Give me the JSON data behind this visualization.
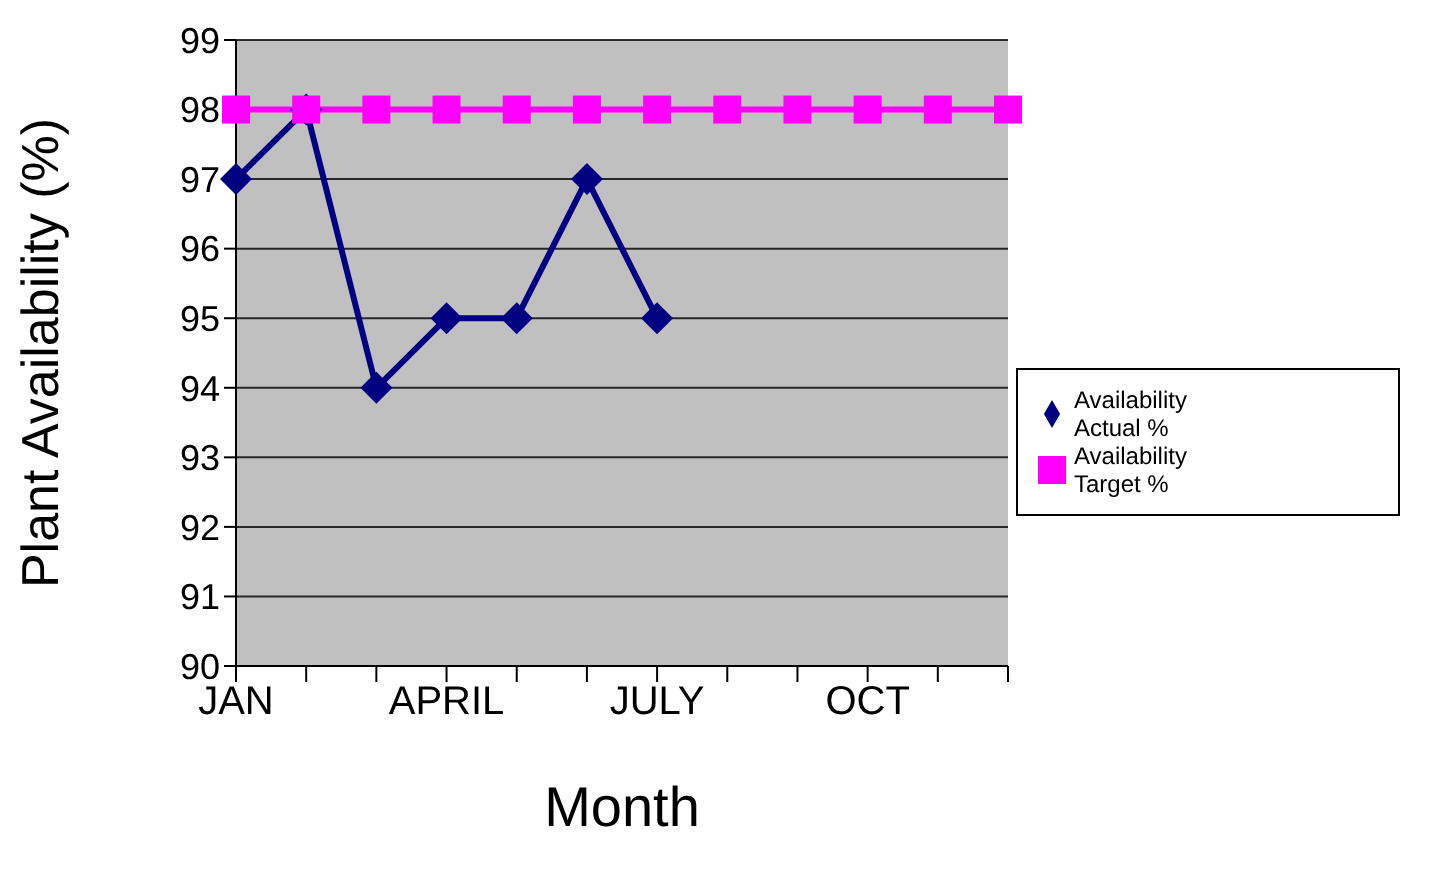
{
  "chart_data": {
    "type": "line",
    "xlabel": "Month",
    "ylabel": "Plant Availability (%)",
    "categories": [
      "JAN",
      null,
      null,
      "APRIL",
      null,
      null,
      "JULY",
      null,
      null,
      "OCT",
      null,
      null
    ],
    "series": [
      {
        "name": "Availability Actual %",
        "color": "#000080",
        "marker": "diamond",
        "values": [
          97,
          98,
          94,
          95,
          95,
          97,
          95,
          null,
          null,
          null,
          null,
          null
        ]
      },
      {
        "name": "Availability Target %",
        "color": "#ff00ff",
        "marker": "square",
        "values": [
          98,
          98,
          98,
          98,
          98,
          98,
          98,
          98,
          98,
          98,
          98,
          98
        ]
      }
    ],
    "ylim": [
      90,
      99
    ],
    "yticks": [
      90,
      91,
      92,
      93,
      94,
      95,
      96,
      97,
      98,
      99
    ],
    "grid": "y",
    "legend": "right",
    "line_style": "solid"
  }
}
